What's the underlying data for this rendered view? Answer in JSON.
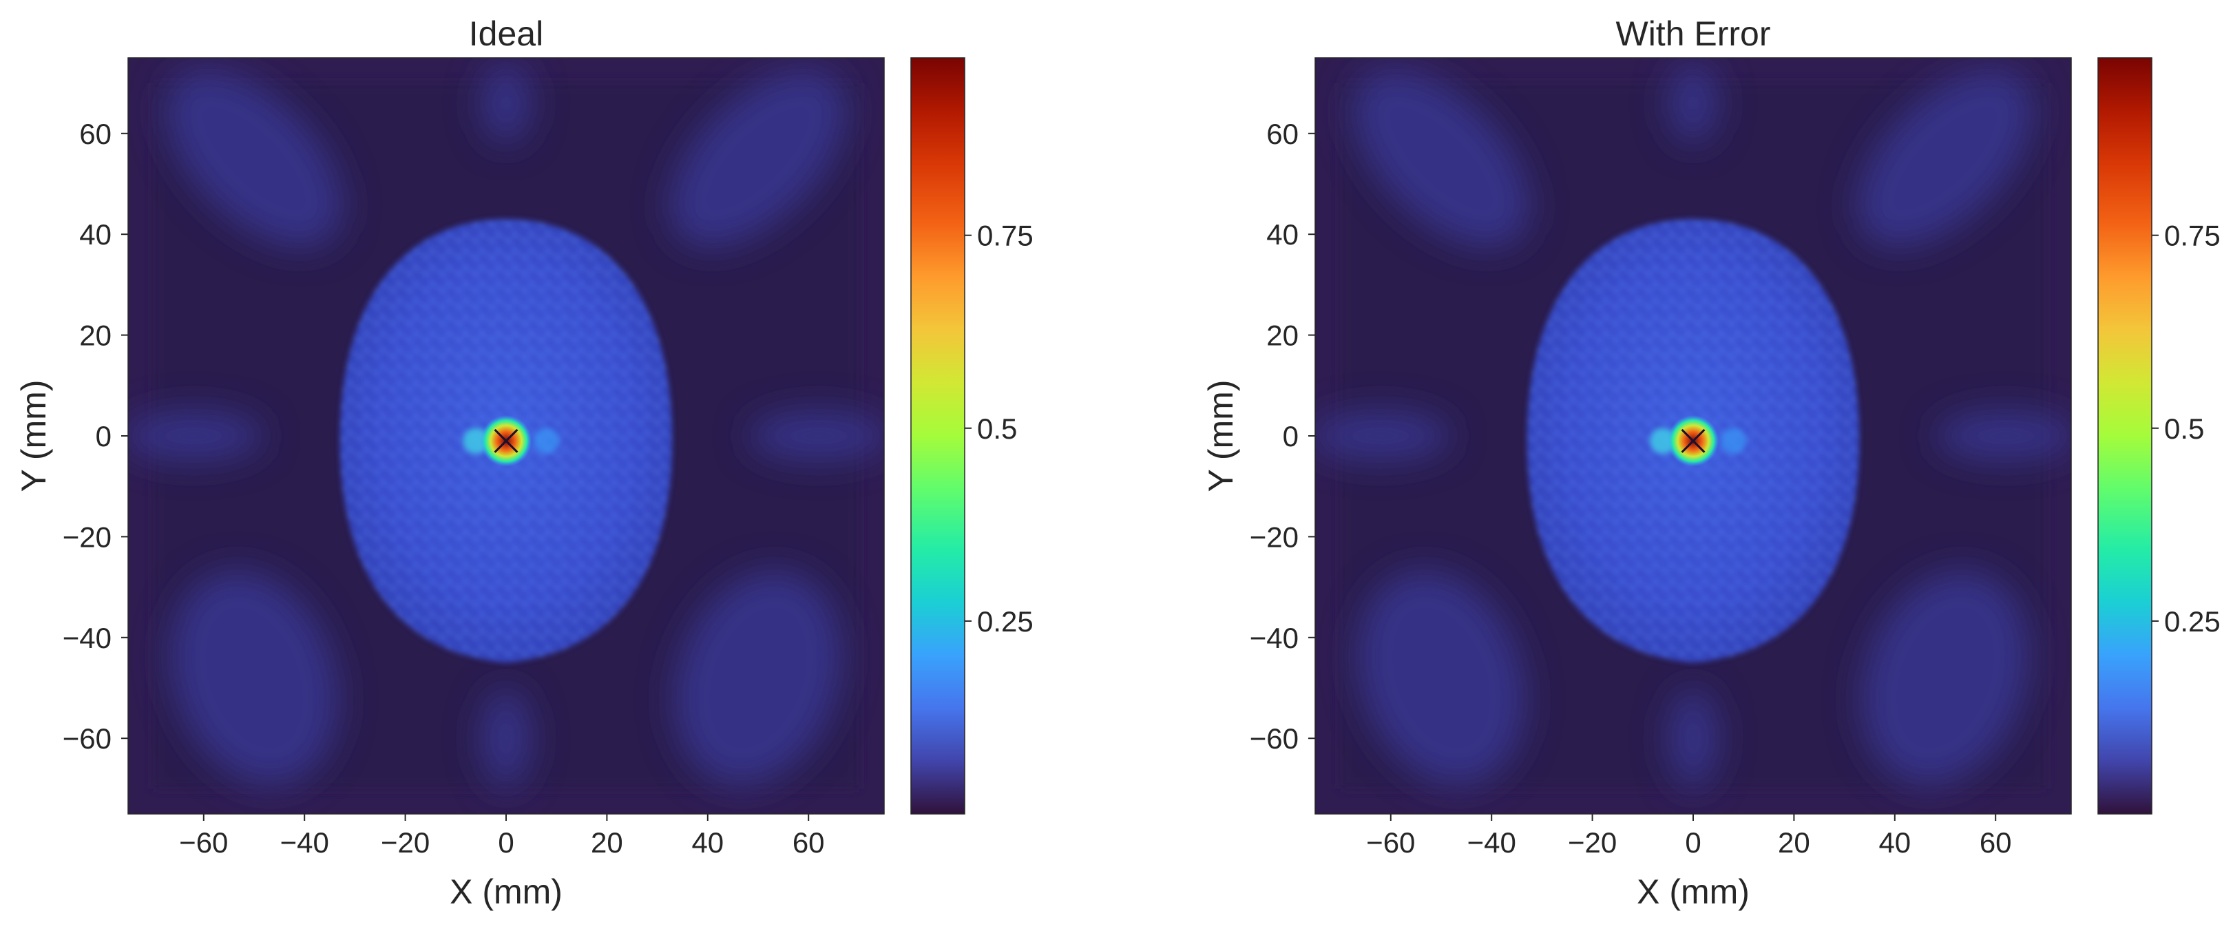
{
  "chart_data": [
    {
      "type": "heatmap",
      "title": "Ideal",
      "xlabel": "X (mm)",
      "ylabel": "Y (mm)",
      "xlim": [
        -75,
        75
      ],
      "ylim": [
        -75,
        75
      ],
      "xticks": [
        -60,
        -40,
        -20,
        0,
        20,
        40,
        60
      ],
      "yticks": [
        60,
        40,
        20,
        0,
        -20,
        -40,
        -60
      ],
      "colorbar": {
        "ticks": [
          0.25,
          0.5,
          0.75
        ],
        "tick_labels": [
          "0.25",
          "0.5",
          "0.75"
        ],
        "range": [
          0,
          0.98
        ],
        "colormap": "turbo"
      },
      "features": {
        "head_center_mm": [
          0,
          0
        ],
        "focal_spot_mm": [
          0,
          -1
        ],
        "peak_value": 0.95
      }
    },
    {
      "type": "heatmap",
      "title": "With Error",
      "xlabel": "X (mm)",
      "ylabel": "Y (mm)",
      "xlim": [
        -75,
        75
      ],
      "ylim": [
        -75,
        75
      ],
      "xticks": [
        -60,
        -40,
        -20,
        0,
        20,
        40,
        60
      ],
      "yticks": [
        60,
        40,
        20,
        0,
        -20,
        -40,
        -60
      ],
      "colorbar": {
        "ticks": [
          0.25,
          0.5,
          0.75
        ],
        "tick_labels": [
          "0.25",
          "0.5",
          "0.75"
        ],
        "range": [
          0,
          0.98
        ],
        "colormap": "turbo"
      },
      "features": {
        "head_center_mm": [
          0,
          0
        ],
        "focal_spot_mm": [
          0,
          -1
        ],
        "peak_value": 0.95
      }
    }
  ],
  "colors": {
    "background": "#2a1a4e",
    "frame_dark": "#2f1d52",
    "tissue": "#3f52d8",
    "lobe": "#3a3a9a"
  }
}
